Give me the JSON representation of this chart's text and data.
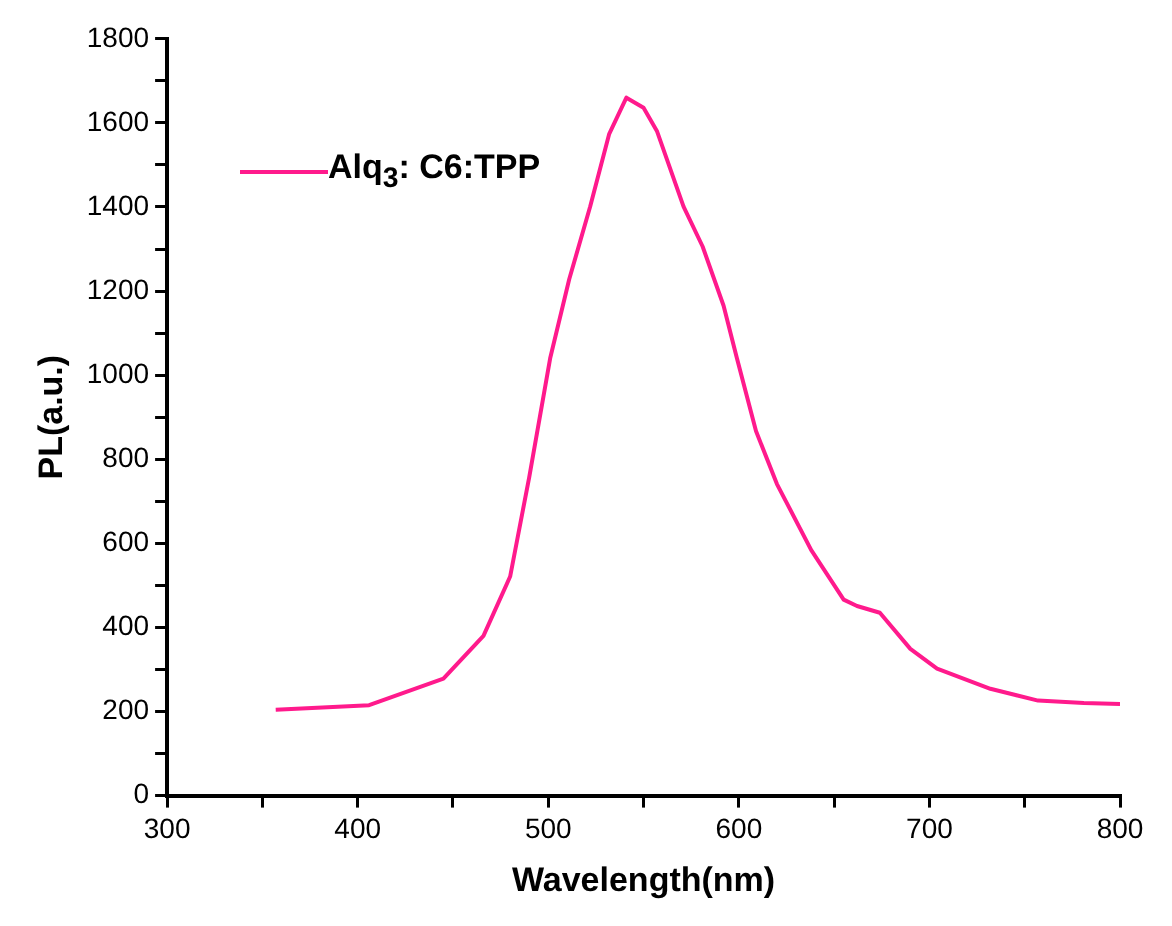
{
  "chart_data": {
    "type": "line",
    "xlabel": "Wavelength(nm)",
    "ylabel": "PL(a.u.)",
    "xlim": [
      300,
      800
    ],
    "ylim": [
      0,
      1800
    ],
    "xticks": [
      300,
      {
        "value": 350,
        "label": null
      },
      400,
      {
        "value": 450,
        "label": null
      },
      500,
      {
        "value": 550,
        "label": null
      },
      600,
      {
        "value": 650,
        "label": null
      },
      700,
      {
        "value": 750,
        "label": null
      },
      800
    ],
    "yticks": [
      0,
      {
        "value": 100,
        "label": null
      },
      200,
      {
        "value": 300,
        "label": null
      },
      400,
      {
        "value": 500,
        "label": null
      },
      600,
      {
        "value": 700,
        "label": null
      },
      800,
      {
        "value": 900,
        "label": null
      },
      1000,
      {
        "value": 1100,
        "label": null
      },
      1200,
      {
        "value": 1300,
        "label": null
      },
      1400,
      {
        "value": 1500,
        "label": null
      },
      1600,
      {
        "value": 1700,
        "label": null
      },
      1800
    ],
    "grid": false,
    "legend": "top left",
    "marker": "none",
    "line_style": "solid",
    "series": [
      {
        "name": "Alq$_{3}$: C6:TPP",
        "color": "#ff1a8c",
        "x": [
          357,
          406,
          445,
          466,
          480,
          490,
          501,
          511,
          522,
          532,
          541,
          550,
          557,
          571,
          581,
          592,
          599,
          609,
          620,
          638,
          655,
          662,
          674,
          690,
          704,
          732,
          757,
          781,
          800
        ],
        "values": [
          204,
          215,
          278,
          380,
          521,
          757,
          1040,
          1228,
          1401,
          1574,
          1660,
          1636,
          1581,
          1401,
          1306,
          1165,
          1040,
          867,
          741,
          584,
          466,
          451,
          435,
          349,
          302,
          254,
          226,
          220,
          218
        ]
      }
    ]
  }
}
